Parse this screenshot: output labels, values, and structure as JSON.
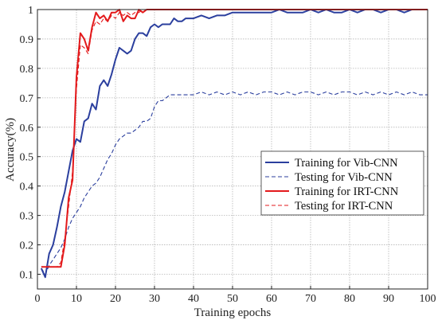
{
  "chart_data": {
    "type": "line",
    "title": "",
    "xlabel": "Training epochs",
    "ylabel": "Accuracy(%)",
    "xlim": [
      0,
      100
    ],
    "ylim": [
      0.05,
      1.0
    ],
    "xticks": [
      0,
      10,
      20,
      30,
      40,
      50,
      60,
      70,
      80,
      90,
      100
    ],
    "yticks": [
      0.1,
      0.2,
      0.3,
      0.4,
      0.5,
      0.6,
      0.7,
      0.8,
      0.9,
      1.0
    ],
    "xtick_labels": [
      "0",
      "10",
      "20",
      "30",
      "40",
      "50",
      "60",
      "70",
      "80",
      "90",
      "100"
    ],
    "ytick_labels": [
      "0.1",
      "0.2",
      "0.3",
      "0.4",
      "0.5",
      "0.6",
      "0.7",
      "0.8",
      "0.9",
      "1"
    ],
    "grid": true,
    "legend_position": "right-middle",
    "series": [
      {
        "name": "Training for Vib-CNN",
        "color": "#2b3f9e",
        "dash": "solid",
        "x": [
          1,
          2,
          3,
          4,
          5,
          6,
          7,
          8,
          9,
          10,
          11,
          12,
          13,
          14,
          15,
          16,
          17,
          18,
          19,
          20,
          21,
          22,
          23,
          24,
          25,
          26,
          27,
          28,
          29,
          30,
          31,
          32,
          33,
          34,
          35,
          36,
          37,
          38,
          39,
          40,
          42,
          44,
          46,
          48,
          50,
          52,
          54,
          56,
          58,
          60,
          62,
          64,
          66,
          68,
          70,
          72,
          74,
          76,
          78,
          80,
          82,
          84,
          86,
          88,
          90,
          92,
          94,
          96,
          98,
          100
        ],
        "values": [
          0.12,
          0.09,
          0.17,
          0.2,
          0.26,
          0.33,
          0.38,
          0.45,
          0.52,
          0.56,
          0.55,
          0.62,
          0.63,
          0.68,
          0.66,
          0.74,
          0.76,
          0.74,
          0.78,
          0.83,
          0.87,
          0.86,
          0.85,
          0.86,
          0.9,
          0.92,
          0.92,
          0.91,
          0.94,
          0.95,
          0.94,
          0.95,
          0.95,
          0.95,
          0.97,
          0.96,
          0.96,
          0.97,
          0.97,
          0.97,
          0.98,
          0.97,
          0.98,
          0.98,
          0.99,
          0.99,
          0.99,
          0.99,
          0.99,
          0.99,
          1.0,
          0.99,
          0.99,
          0.99,
          1.0,
          0.99,
          1.0,
          0.99,
          0.99,
          1.0,
          0.99,
          1.0,
          1.0,
          0.99,
          1.0,
          1.0,
          0.99,
          1.0,
          1.0,
          1.0
        ]
      },
      {
        "name": "Testing for Vib-CNN",
        "color": "#2b3f9e",
        "dash": "dashed",
        "x": [
          1,
          2,
          3,
          4,
          5,
          6,
          7,
          8,
          9,
          10,
          11,
          12,
          13,
          14,
          15,
          16,
          17,
          18,
          19,
          20,
          21,
          22,
          23,
          24,
          25,
          26,
          27,
          28,
          29,
          30,
          31,
          32,
          33,
          34,
          35,
          36,
          38,
          40,
          42,
          44,
          46,
          48,
          50,
          52,
          54,
          56,
          58,
          60,
          62,
          64,
          66,
          68,
          70,
          72,
          74,
          76,
          78,
          80,
          82,
          84,
          86,
          88,
          90,
          92,
          94,
          96,
          98,
          100
        ],
        "values": [
          0.12,
          0.1,
          0.13,
          0.15,
          0.17,
          0.19,
          0.22,
          0.26,
          0.29,
          0.31,
          0.33,
          0.36,
          0.38,
          0.4,
          0.41,
          0.43,
          0.46,
          0.49,
          0.51,
          0.54,
          0.56,
          0.57,
          0.58,
          0.58,
          0.59,
          0.6,
          0.62,
          0.62,
          0.63,
          0.67,
          0.69,
          0.69,
          0.7,
          0.71,
          0.71,
          0.71,
          0.71,
          0.71,
          0.72,
          0.71,
          0.72,
          0.71,
          0.72,
          0.71,
          0.72,
          0.71,
          0.72,
          0.72,
          0.71,
          0.72,
          0.71,
          0.72,
          0.72,
          0.71,
          0.72,
          0.71,
          0.72,
          0.72,
          0.71,
          0.72,
          0.71,
          0.72,
          0.71,
          0.72,
          0.71,
          0.72,
          0.71,
          0.71
        ]
      },
      {
        "name": "Training for IRT-CNN",
        "color": "#e31a1c",
        "dash": "solid",
        "x": [
          1,
          2,
          3,
          4,
          5,
          6,
          7,
          8,
          9,
          10,
          11,
          12,
          13,
          14,
          15,
          16,
          17,
          18,
          19,
          20,
          21,
          22,
          23,
          24,
          25,
          26,
          27,
          28,
          29,
          30,
          35,
          40,
          45,
          50,
          55,
          60,
          65,
          70,
          75,
          80,
          85,
          90,
          95,
          100
        ],
        "values": [
          0.125,
          0.125,
          0.125,
          0.125,
          0.125,
          0.125,
          0.2,
          0.36,
          0.42,
          0.77,
          0.92,
          0.9,
          0.86,
          0.94,
          0.99,
          0.97,
          0.98,
          0.96,
          0.99,
          0.99,
          1.0,
          0.96,
          0.98,
          0.97,
          0.97,
          1.0,
          0.99,
          1.0,
          1.0,
          1.0,
          1.0,
          1.0,
          1.0,
          1.0,
          1.0,
          1.0,
          1.0,
          1.0,
          1.0,
          1.0,
          1.0,
          1.0,
          1.0,
          1.0
        ]
      },
      {
        "name": "Testing for IRT-CNN",
        "color": "#e31a1c",
        "dash": "dashed",
        "x": [
          1,
          2,
          3,
          4,
          5,
          6,
          7,
          8,
          9,
          10,
          11,
          12,
          13,
          14,
          15,
          16,
          17,
          18,
          19,
          20,
          21,
          22,
          23,
          24,
          25,
          26,
          27,
          28,
          29,
          30,
          35,
          40,
          45,
          50,
          55,
          60,
          65,
          70,
          75,
          80,
          85,
          90,
          95,
          100
        ],
        "values": [
          0.125,
          0.125,
          0.125,
          0.125,
          0.125,
          0.14,
          0.22,
          0.33,
          0.45,
          0.73,
          0.88,
          0.87,
          0.85,
          0.93,
          0.96,
          0.95,
          0.97,
          0.96,
          0.98,
          0.97,
          0.99,
          0.98,
          0.99,
          0.98,
          0.99,
          0.99,
          1.0,
          1.0,
          1.0,
          1.0,
          1.0,
          1.0,
          1.0,
          1.0,
          1.0,
          1.0,
          1.0,
          1.0,
          1.0,
          1.0,
          1.0,
          1.0,
          1.0,
          1.0
        ]
      }
    ]
  }
}
